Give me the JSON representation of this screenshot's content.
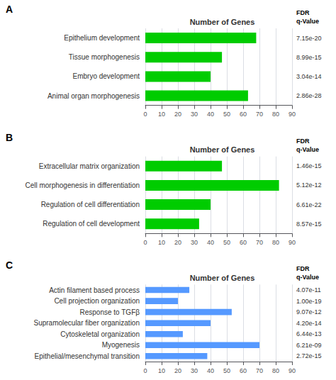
{
  "chart_data": [
    {
      "type": "bar",
      "orientation": "horizontal",
      "title": "Number of Genes",
      "panel_label": "A",
      "categories": [
        "Animal organ morphogenesis",
        "Embryo development",
        "Tissue morphogenesis",
        "Epithelium development"
      ],
      "values": [
        63,
        40,
        47,
        68
      ],
      "fdr_title": "FDR\nq-Value",
      "fdr": [
        "2.86e-28",
        "3.04e-14",
        "8.99e-15",
        "7.15e-20"
      ],
      "color": "#00cc00",
      "xlim": [
        0,
        90
      ],
      "xticks": [
        0,
        10,
        20,
        30,
        40,
        50,
        60,
        70,
        80,
        90
      ],
      "grid": true
    },
    {
      "type": "bar",
      "orientation": "horizontal",
      "title": "Number of Genes",
      "panel_label": "B",
      "categories": [
        "Regulation of cell development",
        "Regulation of cell differentiation",
        "Cell morphogenesis in differentiation",
        "Extracellular matrix organization"
      ],
      "values": [
        33,
        40,
        82,
        47
      ],
      "fdr_title": "FDR\nq-Value",
      "fdr": [
        "8.57e-15",
        "6.61e-22",
        "5.12e-12",
        "1.46e-15"
      ],
      "color": "#00cc00",
      "xlim": [
        0,
        90
      ],
      "xticks": [
        0,
        10,
        20,
        30,
        40,
        50,
        60,
        70,
        80,
        90
      ],
      "grid": true
    },
    {
      "type": "bar",
      "orientation": "horizontal",
      "title": "Number of Genes",
      "panel_label": "C",
      "categories": [
        "Epithelial/mesenchymal transition",
        "Myogenesis",
        "Cytoskeletal organization",
        "Supramolecular fiber organization",
        "Response to TGFβ",
        "Cell projection organization",
        "Actin filament based process"
      ],
      "values": [
        38,
        70,
        23,
        40,
        53,
        20,
        27
      ],
      "fdr_title": "FDR\nq-Value",
      "fdr": [
        "2.72e-15",
        "6.21e-09",
        "6.44e-13",
        "4.20e-14",
        "9.07e-12",
        "1.00e-19",
        "4.07e-11"
      ],
      "color": "#5599ff",
      "xlim": [
        0,
        90
      ],
      "xticks": [
        0,
        10,
        20,
        30,
        40,
        50,
        60,
        70,
        80,
        90
      ],
      "grid": true
    }
  ]
}
